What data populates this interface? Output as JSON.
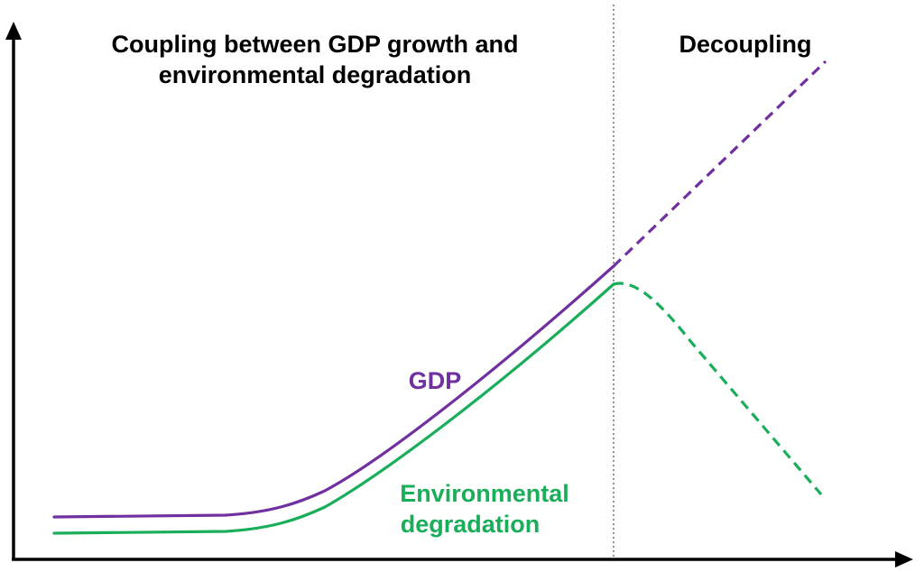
{
  "regions": {
    "coupling": {
      "title_line1": "Coupling between GDP growth and",
      "title_line2": "environmental degradation"
    },
    "decoupling": {
      "title": "Decoupling"
    }
  },
  "series": {
    "gdp": {
      "label": "GDP",
      "color": "#7030a0"
    },
    "environment": {
      "label_line1": "Environmental",
      "label_line2": "degradation",
      "color": "#1aae5a"
    }
  },
  "styles": {
    "axis_color": "#000000",
    "divider_color": "#777777",
    "coupling_phase_line": "solid",
    "decoupling_phase_line": "dashed"
  }
}
